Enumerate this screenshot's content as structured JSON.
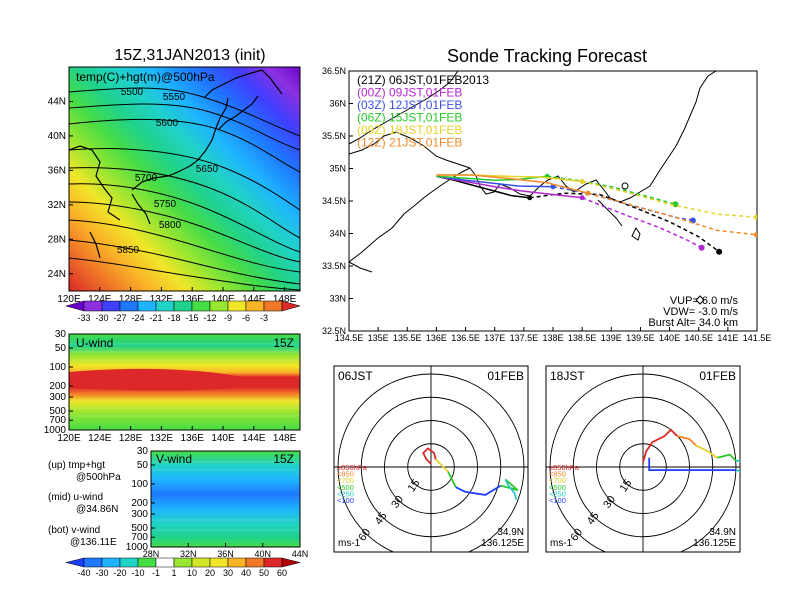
{
  "chart_data": [
    {
      "type": "heatmap",
      "title": "15Z,31JAN2013 (init)",
      "panel_label": "temp(C)+hgt(m)@500hPa",
      "x_ticks": [
        "120E",
        "124E",
        "128E",
        "132E",
        "136E",
        "140E",
        "144E",
        "148E"
      ],
      "y_ticks": [
        "24N",
        "28N",
        "32N",
        "36N",
        "40N",
        "44N"
      ],
      "xlim": [
        120,
        150
      ],
      "ylim": [
        22,
        48
      ],
      "contour_levels": [
        "5500",
        "5550",
        "5600",
        "5650",
        "5700",
        "5750",
        "5800",
        "5850"
      ],
      "colorbar": [
        "-33",
        "-30",
        "-27",
        "-24",
        "-21",
        "-18",
        "-15",
        "-12",
        "-9",
        "-6",
        "-3"
      ],
      "colorbar_colors": [
        "#6a00c8",
        "#8a30e0",
        "#3f3fff",
        "#1e78ff",
        "#1eb4ff",
        "#20d2c8",
        "#20d28c",
        "#46dc46",
        "#96e632",
        "#f0e628",
        "#fab428",
        "#f07828",
        "#dc2828"
      ]
    },
    {
      "type": "heatmap",
      "panel_label": "U-wind",
      "time": "15Z",
      "x_ticks": [
        "120E",
        "124E",
        "128E",
        "132E",
        "136E",
        "140E",
        "144E",
        "148E"
      ],
      "y_ticks": [
        "30",
        "50",
        "100",
        "200",
        "300",
        "500",
        "700",
        "1000"
      ]
    },
    {
      "type": "heatmap",
      "panel_label": "V-wind",
      "time": "15Z",
      "x_ticks": [
        "28N",
        "32N",
        "36N",
        "40N",
        "44N"
      ],
      "y_ticks": [
        "30",
        "50",
        "100",
        "200",
        "300",
        "500",
        "700",
        "1000"
      ],
      "colorbar": [
        "-40",
        "-30",
        "-20",
        "-10",
        "-1",
        "1",
        "10",
        "20",
        "30",
        "40",
        "50",
        "60"
      ],
      "colorbar_colors": [
        "#1e3cff",
        "#1e78ff",
        "#1eb4ff",
        "#20d2c8",
        "#46dc46",
        "#ffffff",
        "#96e632",
        "#d2e628",
        "#f0e628",
        "#fab428",
        "#f07828",
        "#dc2828",
        "#b40000"
      ]
    },
    {
      "type": "line",
      "title": "Sonde Tracking Forecast",
      "xlim": [
        134.5,
        141.5
      ],
      "ylim": [
        32.5,
        36.5
      ],
      "x_ticks": [
        "134.5E",
        "135E",
        "135.5E",
        "136E",
        "136.5E",
        "137E",
        "137.5E",
        "138E",
        "138.5E",
        "139E",
        "139.5E",
        "140E",
        "140.5E",
        "141E",
        "141.5E"
      ],
      "y_ticks": [
        "32.5N",
        "33N",
        "33.5N",
        "34N",
        "34.5N",
        "35N",
        "35.5N",
        "36N",
        "36.5N"
      ],
      "series": [
        {
          "name": "(21Z) 06JST,01FEB2013",
          "color": "#000000",
          "points": [
            [
              136.0,
              34.88
            ],
            [
              136.3,
              34.82
            ],
            [
              136.8,
              34.7
            ],
            [
              137.3,
              34.58
            ],
            [
              137.6,
              34.55
            ],
            [
              138.2,
              34.62
            ],
            [
              138.8,
              34.6
            ],
            [
              139.4,
              34.4
            ],
            [
              140.0,
              34.18
            ],
            [
              140.5,
              33.95
            ],
            [
              140.85,
              33.72
            ]
          ]
        },
        {
          "name": "(00Z) 09JST,01FEB",
          "color": "#b428d2",
          "points": [
            [
              136.0,
              34.88
            ],
            [
              136.5,
              34.8
            ],
            [
              137.0,
              34.72
            ],
            [
              137.5,
              34.65
            ],
            [
              138.5,
              34.55
            ],
            [
              139.2,
              34.3
            ],
            [
              139.8,
              34.1
            ],
            [
              140.3,
              33.9
            ],
            [
              140.55,
              33.78
            ]
          ]
        },
        {
          "name": "(03Z) 12JST,01FEB",
          "color": "#3c50e6",
          "points": [
            [
              136.0,
              34.88
            ],
            [
              136.5,
              34.82
            ],
            [
              136.9,
              34.78
            ],
            [
              137.4,
              34.73
            ],
            [
              138.0,
              34.72
            ],
            [
              138.6,
              34.62
            ],
            [
              139.4,
              34.42
            ],
            [
              140.1,
              34.25
            ],
            [
              140.4,
              34.2
            ]
          ]
        },
        {
          "name": "(06Z) 15JST,01FEB",
          "color": "#28c828",
          "points": [
            [
              136.0,
              34.88
            ],
            [
              136.5,
              34.85
            ],
            [
              137.0,
              34.82
            ],
            [
              137.4,
              34.83
            ],
            [
              137.9,
              34.88
            ],
            [
              138.4,
              34.82
            ],
            [
              139.0,
              34.72
            ],
            [
              139.7,
              34.55
            ],
            [
              140.1,
              34.45
            ]
          ]
        },
        {
          "name": "(09Z) 18JST,01FEB",
          "color": "#e6d228",
          "points": [
            [
              136.0,
              34.9
            ],
            [
              136.6,
              34.9
            ],
            [
              137.2,
              34.88
            ],
            [
              137.8,
              34.87
            ],
            [
              138.5,
              34.8
            ],
            [
              139.2,
              34.65
            ],
            [
              140.0,
              34.45
            ],
            [
              140.8,
              34.3
            ],
            [
              141.5,
              34.25
            ]
          ]
        },
        {
          "name": "(12Z) 21JST,01FEB",
          "color": "#f08c28",
          "points": [
            [
              136.0,
              34.9
            ],
            [
              136.6,
              34.9
            ],
            [
              137.2,
              34.85
            ],
            [
              137.9,
              34.78
            ],
            [
              138.6,
              34.62
            ],
            [
              139.3,
              34.45
            ],
            [
              140.1,
              34.25
            ],
            [
              140.8,
              34.05
            ],
            [
              141.5,
              33.98
            ]
          ]
        }
      ],
      "params": [
        "VUP=  6.0  m/s",
        "VDW=  -3.0  m/s",
        "Burst Alt=  34.0  km"
      ]
    },
    {
      "type": "scatter",
      "subtype": "hodograph",
      "time_label": "06JST",
      "date_label": "01FEB",
      "ring_labels": [
        "15",
        "30",
        "45",
        "60"
      ],
      "unit": "ms-1",
      "location": [
        "34.9N",
        "136.125E"
      ],
      "level_legend": [
        {
          "label": "≥850hPa",
          "color": "#dc2828"
        },
        {
          "label": "<850",
          "color": "#fa8228"
        },
        {
          "label": "<700",
          "color": "#e6d228"
        },
        {
          "label": "<500",
          "color": "#28c828"
        },
        {
          "label": "<250",
          "color": "#20c8c8"
        },
        {
          "label": "<100",
          "color": "#1e3cff"
        }
      ],
      "segments": [
        {
          "color": "#dc2828",
          "points": [
            [
              0,
              2
            ],
            [
              -3,
              5
            ],
            [
              -5,
              9
            ],
            [
              -2,
              12
            ],
            [
              2,
              9
            ],
            [
              3,
              5
            ]
          ]
        },
        {
          "color": "#e6d228",
          "points": [
            [
              3,
              5
            ],
            [
              7,
              1
            ],
            [
              11,
              -3
            ]
          ]
        },
        {
          "color": "#28c828",
          "points": [
            [
              11,
              -3
            ],
            [
              14,
              -9
            ],
            [
              16,
              -13
            ]
          ]
        },
        {
          "color": "#1e3cff",
          "points": [
            [
              16,
              -13
            ],
            [
              22,
              -16
            ],
            [
              35,
              -18
            ],
            [
              45,
              -12
            ]
          ]
        },
        {
          "color": "#28c828",
          "points": [
            [
              45,
              -12
            ],
            [
              56,
              -15
            ],
            [
              48,
              -8
            ]
          ]
        },
        {
          "color": "#20c8c8",
          "points": [
            [
              48,
              -8
            ],
            [
              50,
              -12
            ],
            [
              54,
              -17
            ],
            [
              55,
              -21
            ]
          ]
        }
      ]
    },
    {
      "type": "scatter",
      "subtype": "hodograph",
      "time_label": "18JST",
      "date_label": "01FEB",
      "ring_labels": [
        "15",
        "30",
        "45",
        "60"
      ],
      "unit": "ms-1",
      "location": [
        "34.9N",
        "136.125E"
      ],
      "level_legend": [
        {
          "label": "≥850hPa",
          "color": "#dc2828"
        },
        {
          "label": "<850",
          "color": "#fa8228"
        },
        {
          "label": "<700",
          "color": "#e6d228"
        },
        {
          "label": "<500",
          "color": "#28c828"
        },
        {
          "label": "<250",
          "color": "#20c8c8"
        },
        {
          "label": "<100",
          "color": "#1e3cff"
        }
      ],
      "segments": [
        {
          "color": "#dc2828",
          "points": [
            [
              0,
              3
            ],
            [
              2,
              10
            ],
            [
              6,
              16
            ],
            [
              14,
              20
            ],
            [
              18,
              24
            ],
            [
              22,
              20
            ]
          ]
        },
        {
          "color": "#fa8228",
          "points": [
            [
              22,
              20
            ],
            [
              30,
              18
            ],
            [
              34,
              14
            ]
          ]
        },
        {
          "color": "#e6d228",
          "points": [
            [
              34,
              14
            ],
            [
              42,
              10
            ],
            [
              48,
              6
            ]
          ]
        },
        {
          "color": "#28c828",
          "points": [
            [
              48,
              6
            ],
            [
              56,
              8
            ],
            [
              60,
              4
            ]
          ]
        },
        {
          "color": "#20c8c8",
          "points": [
            [
              60,
              4
            ],
            [
              68,
              4
            ],
            [
              76,
              0
            ],
            [
              70,
              -4
            ],
            [
              60,
              -2
            ]
          ]
        },
        {
          "color": "#1e3cff",
          "points": [
            [
              60,
              -2
            ],
            [
              45,
              -2
            ],
            [
              30,
              -2
            ],
            [
              15,
              -2
            ],
            [
              4,
              -2
            ],
            [
              4,
              6
            ]
          ]
        }
      ]
    }
  ],
  "sidebar_legend": {
    "up": [
      "(up) tmp+hgt",
      "@500hPa"
    ],
    "mid": [
      "(mid) u-wind",
      "@34.86N"
    ],
    "bot": [
      "(bot) v-wind",
      "@136.11E"
    ]
  }
}
